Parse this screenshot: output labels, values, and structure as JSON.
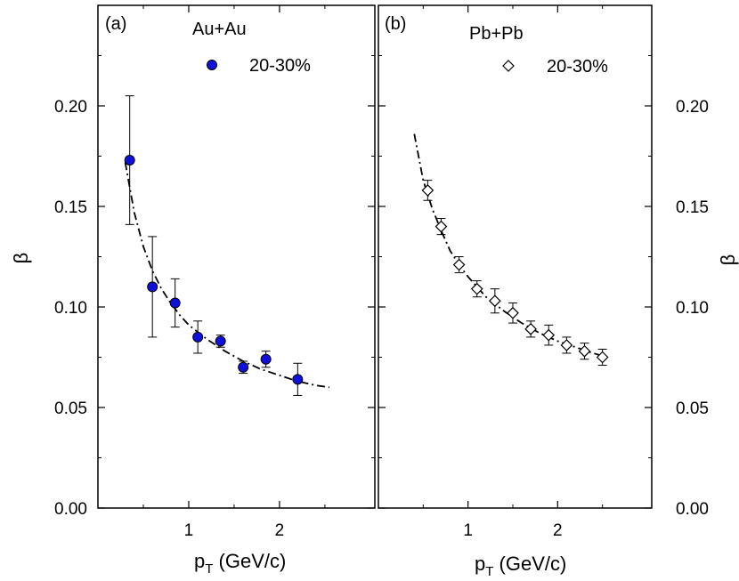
{
  "chart_data": [
    {
      "type": "scatter",
      "panel_label": "(a)",
      "system": "Au+Au",
      "xlabel": "p",
      "xlabel_sub": "T",
      "xlabel_unit": " (GeV/c)",
      "ylabel": "β",
      "xlim": [
        0,
        3.05
      ],
      "ylim": [
        0,
        0.25
      ],
      "xticks": [
        1,
        2
      ],
      "yticks": [
        0.0,
        0.05,
        0.1,
        0.15,
        0.2
      ],
      "ytick_labels": [
        "0.00",
        "0.05",
        "0.10",
        "0.15",
        "0.20"
      ],
      "series": [
        {
          "name": "20-30%",
          "marker": "circle",
          "color": "#1010dd",
          "x": [
            0.35,
            0.6,
            0.85,
            1.1,
            1.35,
            1.6,
            1.85,
            2.2
          ],
          "y": [
            0.173,
            0.11,
            0.102,
            0.085,
            0.083,
            0.07,
            0.074,
            0.064
          ],
          "yerr": [
            0.032,
            0.025,
            0.012,
            0.008,
            0.003,
            0.003,
            0.004,
            0.008
          ]
        }
      ],
      "fit_curve": {
        "style": "dash-dot",
        "x": [
          0.3,
          0.4,
          0.5,
          0.6,
          0.7,
          0.8,
          0.9,
          1.0,
          1.2,
          1.4,
          1.6,
          1.8,
          2.0,
          2.2,
          2.4,
          2.55
        ],
        "y": [
          0.172,
          0.147,
          0.13,
          0.118,
          0.109,
          0.102,
          0.096,
          0.091,
          0.084,
          0.078,
          0.073,
          0.069,
          0.066,
          0.063,
          0.061,
          0.06
        ]
      }
    },
    {
      "type": "scatter",
      "panel_label": "(b)",
      "system": "Pb+Pb",
      "xlabel": "p",
      "xlabel_sub": "T",
      "xlabel_unit": " (GeV/c)",
      "ylabel": "β",
      "xlim": [
        0,
        3.05
      ],
      "ylim": [
        0,
        0.25
      ],
      "xticks": [
        1,
        2
      ],
      "yticks": [
        0.0,
        0.05,
        0.1,
        0.15,
        0.2
      ],
      "ytick_labels": [
        "0.00",
        "0.05",
        "0.10",
        "0.15",
        "0.20"
      ],
      "series": [
        {
          "name": "20-30%",
          "marker": "diamond-open",
          "color": "#000000",
          "x": [
            0.55,
            0.7,
            0.9,
            1.1,
            1.3,
            1.5,
            1.7,
            1.9,
            2.1,
            2.3,
            2.5
          ],
          "y": [
            0.158,
            0.14,
            0.121,
            0.109,
            0.103,
            0.097,
            0.089,
            0.086,
            0.081,
            0.078,
            0.075
          ],
          "yerr": [
            0.005,
            0.004,
            0.004,
            0.004,
            0.006,
            0.005,
            0.004,
            0.005,
            0.004,
            0.004,
            0.004
          ]
        }
      ],
      "fit_curve": {
        "style": "dash-dot",
        "x": [
          0.4,
          0.5,
          0.6,
          0.7,
          0.8,
          0.9,
          1.0,
          1.2,
          1.4,
          1.6,
          1.8,
          2.0,
          2.2,
          2.4,
          2.55
        ],
        "y": [
          0.186,
          0.163,
          0.149,
          0.138,
          0.128,
          0.121,
          0.115,
          0.105,
          0.098,
          0.092,
          0.087,
          0.083,
          0.08,
          0.077,
          0.075
        ]
      }
    }
  ]
}
